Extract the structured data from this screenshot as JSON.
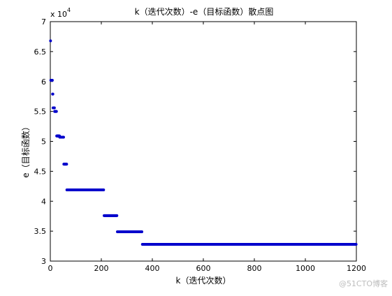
{
  "chart_data": {
    "type": "scatter",
    "title": "k（迭代次数）-e（目标函数）散点图",
    "xlabel": "k（迭代次数）",
    "ylabel": "e（目标函数）",
    "y_exponent_label": "x 10",
    "y_exponent_power": "4",
    "xlim": [
      0,
      1200
    ],
    "ylim": [
      30000,
      70000
    ],
    "x_ticks": [
      0,
      200,
      400,
      600,
      800,
      1000,
      1200
    ],
    "x_tick_labels": [
      "0",
      "200",
      "400",
      "600",
      "800",
      "1000",
      "1200"
    ],
    "y_ticks": [
      30000,
      35000,
      40000,
      45000,
      50000,
      55000,
      60000,
      65000,
      70000
    ],
    "y_tick_labels": [
      "3",
      "3.5",
      "4",
      "4.5",
      "5",
      "5.5",
      "6",
      "6.5",
      "7"
    ],
    "marker_color": "#0000CC",
    "grid": false,
    "segments": [
      {
        "x_start": 1,
        "x_end": 1,
        "y": 66800
      },
      {
        "x_start": 2,
        "x_end": 8,
        "y": 60200
      },
      {
        "x_start": 9,
        "x_end": 10,
        "y": 57900
      },
      {
        "x_start": 11,
        "x_end": 16,
        "y": 55600
      },
      {
        "x_start": 17,
        "x_end": 24,
        "y": 55000
      },
      {
        "x_start": 25,
        "x_end": 36,
        "y": 50900
      },
      {
        "x_start": 37,
        "x_end": 52,
        "y": 50700
      },
      {
        "x_start": 53,
        "x_end": 64,
        "y": 46200
      },
      {
        "x_start": 65,
        "x_end": 210,
        "y": 41900
      },
      {
        "x_start": 211,
        "x_end": 262,
        "y": 37600
      },
      {
        "x_start": 263,
        "x_end": 360,
        "y": 34900
      },
      {
        "x_start": 361,
        "x_end": 1200,
        "y": 32800
      }
    ]
  },
  "watermark": "@51CTO博客"
}
